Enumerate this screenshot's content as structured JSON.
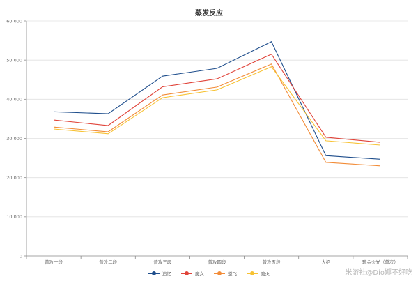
{
  "chart_data": {
    "type": "line",
    "title": "蒸发反应",
    "xlabel": "",
    "ylabel": "",
    "ylim": [
      0,
      60000
    ],
    "yticks": [
      "0",
      "10,000",
      "20,000",
      "30,000",
      "40,000",
      "50,000",
      "60,000"
    ],
    "grid": true,
    "legend_position": "bottom",
    "categories": [
      "普攻一段",
      "普攻二段",
      "普攻三段",
      "普攻四段",
      "普攻五段",
      "大招",
      "琉金火光（单次）"
    ],
    "series": [
      {
        "name": "追忆",
        "color": "#1f4e8c",
        "values": [
          36800,
          36300,
          45900,
          47900,
          54700,
          25600,
          24700
        ]
      },
      {
        "name": "魔女",
        "color": "#e0443a",
        "values": [
          34700,
          33300,
          43200,
          45200,
          51500,
          30300,
          29000
        ]
      },
      {
        "name": "逆飞",
        "color": "#f28c38",
        "values": [
          32900,
          31700,
          41100,
          43100,
          49000,
          23900,
          23000
        ]
      },
      {
        "name": "渡火",
        "color": "#f7c233",
        "values": [
          32400,
          31200,
          40400,
          42400,
          48300,
          29400,
          28300
        ]
      }
    ]
  },
  "watermark": "米游社@Dio娜不好吃"
}
